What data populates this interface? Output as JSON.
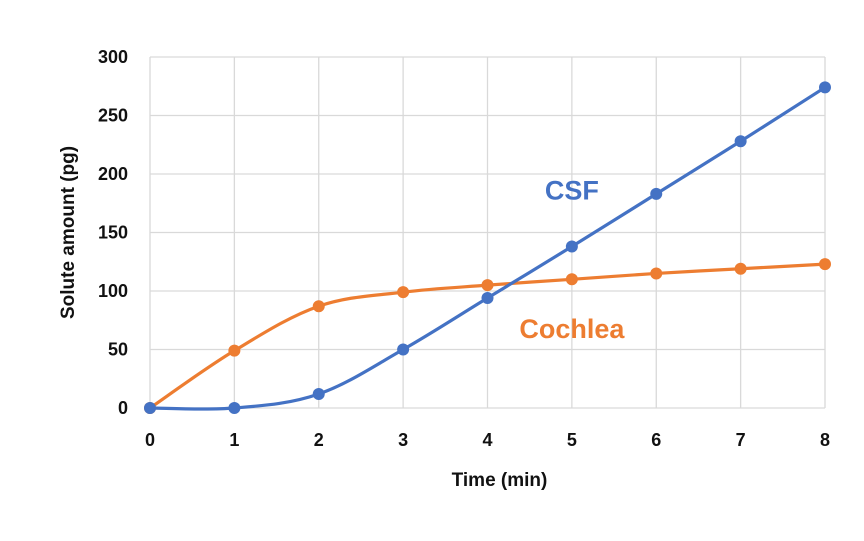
{
  "chart_data": {
    "type": "line",
    "title": "",
    "xlabel": "Time (min)",
    "ylabel": "Solute amount (pg)",
    "xlim": [
      0,
      8
    ],
    "ylim": [
      0,
      300
    ],
    "x_ticks": [
      0,
      1,
      2,
      3,
      4,
      5,
      6,
      7,
      8
    ],
    "y_ticks": [
      0,
      50,
      100,
      150,
      200,
      250,
      300
    ],
    "grid": true,
    "smooth": true,
    "series": [
      {
        "name": "CSF",
        "color": "#4472c4",
        "x": [
          0,
          1,
          2,
          3,
          4,
          5,
          6,
          7,
          8
        ],
        "values": [
          0,
          0,
          12,
          50,
          94,
          138,
          183,
          228,
          274
        ]
      },
      {
        "name": "Cochlea",
        "color": "#ed7d31",
        "x": [
          0,
          1,
          2,
          3,
          4,
          5,
          6,
          7,
          8
        ],
        "values": [
          0,
          49,
          87,
          99,
          105,
          110,
          115,
          119,
          123
        ]
      }
    ]
  }
}
